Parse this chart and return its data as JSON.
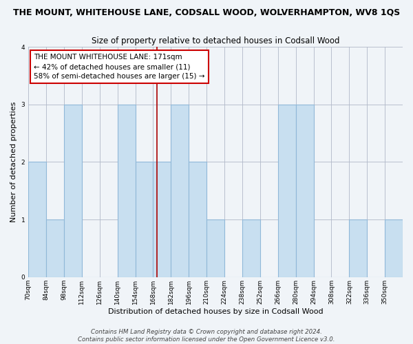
{
  "title": "THE MOUNT, WHITEHOUSE LANE, CODSALL WOOD, WOLVERHAMPTON, WV8 1QS",
  "subtitle": "Size of property relative to detached houses in Codsall Wood",
  "xlabel": "Distribution of detached houses by size in Codsall Wood",
  "ylabel": "Number of detached properties",
  "bar_color": "#c8dff0",
  "bar_edgecolor": "#90b8d8",
  "marker_value": 171,
  "marker_color": "#aa0000",
  "bin_edges": [
    70,
    84,
    98,
    112,
    126,
    140,
    154,
    168,
    182,
    196,
    210,
    224,
    238,
    252,
    266,
    280,
    294,
    308,
    322,
    336,
    350
  ],
  "bin_labels": [
    "70sqm",
    "84sqm",
    "98sqm",
    "112sqm",
    "126sqm",
    "140sqm",
    "154sqm",
    "168sqm",
    "182sqm",
    "196sqm",
    "210sqm",
    "224sqm",
    "238sqm",
    "252sqm",
    "266sqm",
    "280sqm",
    "294sqm",
    "308sqm",
    "322sqm",
    "336sqm",
    "350sqm"
  ],
  "counts": [
    2,
    1,
    3,
    0,
    0,
    3,
    2,
    2,
    3,
    2,
    1,
    0,
    1,
    0,
    3,
    3,
    0,
    0,
    1,
    0,
    1
  ],
  "ylim": [
    0,
    4
  ],
  "yticks": [
    0,
    1,
    2,
    3,
    4
  ],
  "annotation_title": "THE MOUNT WHITEHOUSE LANE: 171sqm",
  "annotation_line1": "← 42% of detached houses are smaller (11)",
  "annotation_line2": "58% of semi-detached houses are larger (15) →",
  "footer1": "Contains HM Land Registry data © Crown copyright and database right 2024.",
  "footer2": "Contains public sector information licensed under the Open Government Licence v3.0.",
  "bg_color": "#f0f4f8",
  "plot_bg_color": "#f0f4f8",
  "title_fontsize": 9,
  "subtitle_fontsize": 8.5,
  "axis_label_fontsize": 8,
  "tick_fontsize": 6.5,
  "footer_fontsize": 6.2,
  "annotation_fontsize": 7.5
}
